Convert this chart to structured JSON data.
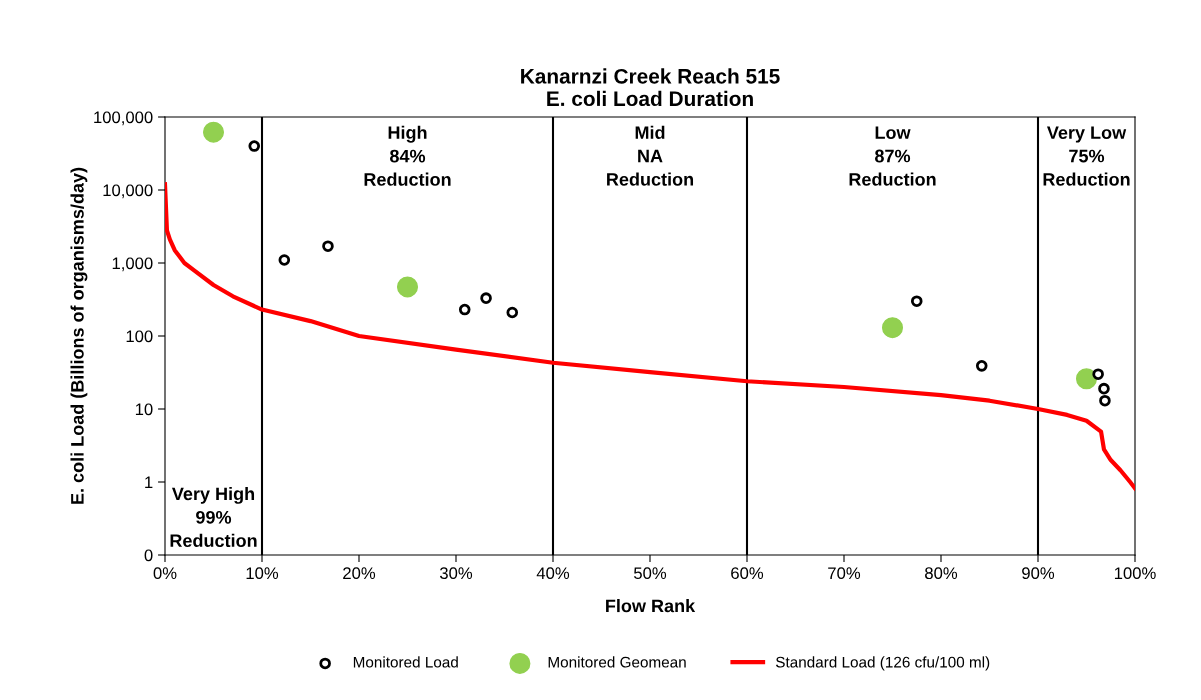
{
  "chart_data": {
    "type": "scatter",
    "title": "Kanarnzi Creek Reach 515\nE. coli Load Duration",
    "xlabel": "Flow Rank",
    "ylabel": "E. coli Load (Billions of organisms/day)",
    "log": "y",
    "xlim": [
      0,
      100
    ],
    "xticks": [
      {
        "value": 0,
        "label": "0%"
      },
      {
        "value": 10,
        "label": "10%"
      },
      {
        "value": 20,
        "label": "20%"
      },
      {
        "value": 30,
        "label": "30%"
      },
      {
        "value": 40,
        "label": "40%"
      },
      {
        "value": 50,
        "label": "50%"
      },
      {
        "value": 60,
        "label": "60%"
      },
      {
        "value": 70,
        "label": "70%"
      },
      {
        "value": 80,
        "label": "80%"
      },
      {
        "value": 90,
        "label": "90%"
      },
      {
        "value": 100,
        "label": "100%"
      }
    ],
    "ylim": [
      0.1,
      100000
    ],
    "yticks": [
      {
        "value": 0.1,
        "label": "0"
      },
      1,
      10,
      100,
      {
        "value": 1000,
        "label": "1,000"
      },
      {
        "value": 10000,
        "label": "10,000"
      },
      {
        "value": 100000,
        "label": "100,000"
      }
    ],
    "grid": false,
    "legend": "bottom",
    "series": [
      {
        "name": "Monitored Load",
        "marker": "circle",
        "color": "#000000",
        "x": [
          9.2,
          12.3,
          16.8,
          30.9,
          33.1,
          35.8,
          77.5,
          84.2,
          96.2,
          96.8,
          96.9
        ],
        "values": [
          40000,
          1100,
          1700,
          230,
          330,
          210,
          300,
          39,
          30,
          19,
          13
        ]
      },
      {
        "name": "Monitored Geomean",
        "marker": "circle",
        "color": "#92d050",
        "x": [
          5,
          25,
          75,
          95
        ],
        "values": [
          62000,
          470,
          130,
          26
        ]
      },
      {
        "name": "Standard Load (126 cfu/100 ml)",
        "type": "line",
        "marker": "none",
        "color": "#ff0000",
        "x": [
          0,
          0.2,
          0.5,
          1,
          2,
          3,
          5,
          7,
          10,
          15,
          20,
          30,
          40,
          50,
          60,
          70,
          80,
          85,
          90,
          93,
          95,
          96.5,
          96.8,
          97.5,
          98.5,
          99.5,
          100
        ],
        "values": [
          12000,
          2800,
          2100,
          1500,
          1000,
          790,
          500,
          350,
          230,
          160,
          100,
          65,
          43,
          32,
          24,
          20,
          15.5,
          13,
          10,
          8.3,
          6.9,
          4.9,
          2.8,
          2.0,
          1.45,
          1.0,
          0.82
        ]
      }
    ],
    "ref_lines": [
      {
        "axis": "x",
        "value": 10,
        "color": "#000000"
      },
      {
        "axis": "x",
        "value": 40,
        "color": "#000000"
      },
      {
        "axis": "x",
        "value": 60,
        "color": "#000000"
      },
      {
        "axis": "x",
        "value": 90,
        "color": "#000000"
      }
    ],
    "annotations": [
      "Very High\n99%\nReduction",
      "High\n84%\nReduction",
      "Mid\nNA\nReduction",
      "Low\n87%\nReduction",
      "Very Low\n75%\nReduction"
    ]
  }
}
